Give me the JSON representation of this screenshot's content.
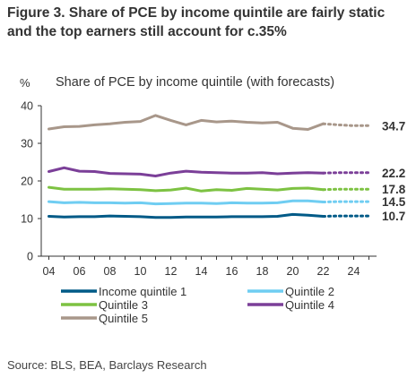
{
  "figure": {
    "title": "Figure 3. Share of PCE by income quintile are fairly static and the top earners still account for c.35%",
    "source": "Source: BLS, BEA, Barclays Research"
  },
  "chart_data": {
    "type": "line",
    "title": "Share of PCE by income quintile (with forecasts)",
    "ylabel": "%",
    "xlabel": "",
    "ylim": [
      0,
      40
    ],
    "yticks": [
      0,
      10,
      20,
      30,
      40
    ],
    "xlim": [
      2003.5,
      2025.5
    ],
    "xticks": [
      2004,
      2006,
      2008,
      2010,
      2012,
      2014,
      2016,
      2018,
      2020,
      2022,
      2024
    ],
    "xtick_labels": [
      "04",
      "06",
      "08",
      "10",
      "12",
      "14",
      "16",
      "18",
      "20",
      "22",
      "24"
    ],
    "x": [
      2004,
      2005,
      2006,
      2007,
      2008,
      2009,
      2010,
      2011,
      2012,
      2013,
      2014,
      2015,
      2016,
      2017,
      2018,
      2019,
      2020,
      2021,
      2022
    ],
    "forecast_x": [
      2022,
      2023,
      2024,
      2025
    ],
    "grid": false,
    "legend_position": "bottom",
    "series": [
      {
        "name": "Income quintile 1",
        "color": "#005a87",
        "values": [
          10.6,
          10.4,
          10.5,
          10.5,
          10.7,
          10.6,
          10.5,
          10.3,
          10.3,
          10.4,
          10.4,
          10.4,
          10.5,
          10.5,
          10.5,
          10.6,
          11.1,
          10.9,
          10.6
        ],
        "forecast": [
          10.6,
          10.7,
          10.7,
          10.7
        ],
        "end_label": "10.7"
      },
      {
        "name": "Quintile 2",
        "color": "#6fcdf2",
        "values": [
          14.5,
          14.2,
          14.3,
          14.2,
          14.2,
          14.1,
          14.2,
          13.9,
          14.0,
          14.1,
          14.1,
          14.0,
          14.2,
          14.1,
          14.1,
          14.2,
          14.7,
          14.7,
          14.4
        ],
        "forecast": [
          14.4,
          14.5,
          14.5,
          14.5
        ],
        "end_label": "14.5"
      },
      {
        "name": "Quintile 3",
        "color": "#7dc242",
        "values": [
          18.3,
          17.8,
          17.8,
          17.8,
          17.9,
          17.8,
          17.7,
          17.4,
          17.6,
          18.1,
          17.3,
          17.7,
          17.5,
          18.0,
          17.8,
          17.6,
          18.0,
          18.1,
          17.7
        ],
        "forecast": [
          17.7,
          17.8,
          17.8,
          17.8
        ],
        "end_label": "17.8"
      },
      {
        "name": "Quintile 4",
        "color": "#7b3f98",
        "values": [
          22.5,
          23.5,
          22.6,
          22.5,
          22.0,
          21.9,
          21.8,
          21.3,
          22.1,
          22.6,
          22.3,
          22.2,
          22.1,
          22.1,
          22.2,
          21.9,
          22.1,
          22.2,
          22.1
        ],
        "forecast": [
          22.1,
          22.2,
          22.2,
          22.2
        ],
        "end_label": "22.2"
      },
      {
        "name": "Quintile 5",
        "color": "#a8978a",
        "values": [
          33.8,
          34.4,
          34.5,
          34.9,
          35.2,
          35.6,
          35.8,
          37.4,
          36.1,
          34.9,
          36.1,
          35.7,
          35.9,
          35.6,
          35.4,
          35.6,
          34.0,
          33.7,
          35.2
        ],
        "forecast": [
          35.2,
          34.9,
          34.7,
          34.7
        ],
        "end_label": "34.7"
      }
    ]
  }
}
